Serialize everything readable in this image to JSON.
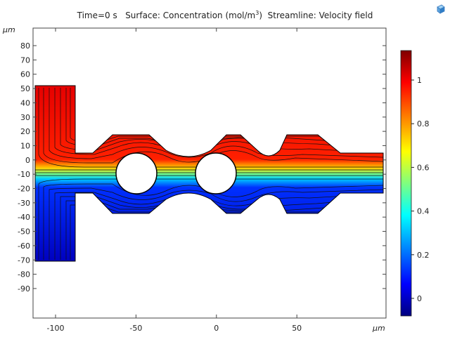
{
  "title": {
    "time": "Time=0 s",
    "surface": "Surface: Concentration (mol/m",
    "surface_sup": "3",
    "surface_close": ")",
    "streamline": "Streamline: Velocity field"
  },
  "toolbar": {
    "icon": "cube-icon"
  },
  "chart_data": {
    "type": "heatmap",
    "x_unit": "µm",
    "y_unit": "µm",
    "x_ticks": [
      "-100",
      "-50",
      "0",
      "50"
    ],
    "y_ticks": [
      "80",
      "70",
      "60",
      "50",
      "40",
      "30",
      "20",
      "10",
      "0",
      "-10",
      "-20",
      "-30",
      "-40",
      "-50",
      "-60",
      "-70",
      "-80",
      "-90"
    ],
    "colorbar": {
      "ticks": [
        "1",
        "0.8",
        "0.6",
        "0.4",
        "0.2",
        "0"
      ],
      "colormap": [
        "#7f0000",
        "#ff0000",
        "#ffff00",
        "#00ffff",
        "#0000ff",
        "#00007f"
      ]
    }
  }
}
